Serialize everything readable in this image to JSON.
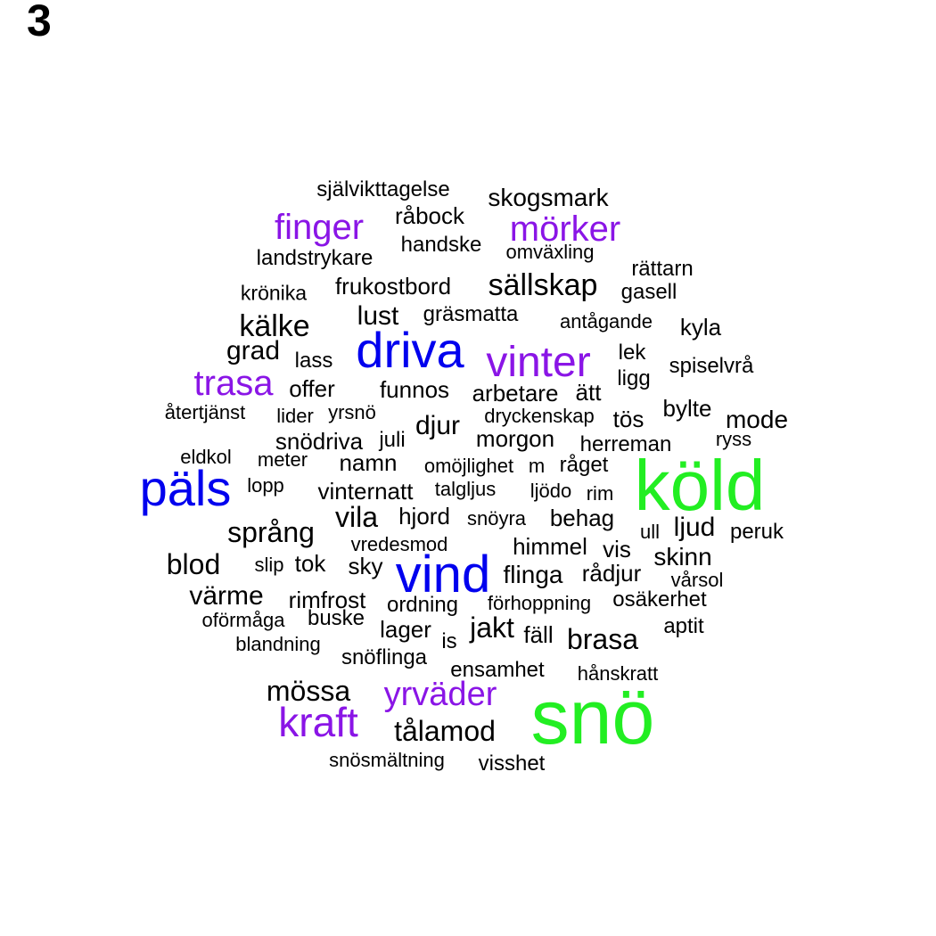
{
  "panel_label": "3",
  "colors": {
    "green": "#22ee22",
    "blue": "#0000ee",
    "purple": "#8a15e6",
    "black": "#000000"
  },
  "words": [
    {
      "text": "snö",
      "color": "green"
    },
    {
      "text": "köld",
      "color": "green"
    },
    {
      "text": "päls",
      "color": "blue"
    },
    {
      "text": "vind",
      "color": "blue"
    },
    {
      "text": "driva",
      "color": "blue"
    },
    {
      "text": "vinter",
      "color": "purple"
    },
    {
      "text": "finger",
      "color": "purple"
    },
    {
      "text": "mörker",
      "color": "purple"
    },
    {
      "text": "trasa",
      "color": "purple"
    },
    {
      "text": "kraft",
      "color": "purple"
    },
    {
      "text": "yrväder",
      "color": "purple"
    },
    {
      "text": "självikttagelse",
      "color": "black"
    },
    {
      "text": "skogsmark",
      "color": "black"
    },
    {
      "text": "råbock",
      "color": "black"
    },
    {
      "text": "handske",
      "color": "black"
    },
    {
      "text": "omväxling",
      "color": "black"
    },
    {
      "text": "landstrykare",
      "color": "black"
    },
    {
      "text": "rättarn",
      "color": "black"
    },
    {
      "text": "krönika",
      "color": "black"
    },
    {
      "text": "frukostbord",
      "color": "black"
    },
    {
      "text": "sällskap",
      "color": "black"
    },
    {
      "text": "gasell",
      "color": "black"
    },
    {
      "text": "kälke",
      "color": "black"
    },
    {
      "text": "lust",
      "color": "black"
    },
    {
      "text": "gräsmatta",
      "color": "black"
    },
    {
      "text": "antågande",
      "color": "black"
    },
    {
      "text": "kyla",
      "color": "black"
    },
    {
      "text": "grad",
      "color": "black"
    },
    {
      "text": "lass",
      "color": "black"
    },
    {
      "text": "lek",
      "color": "black"
    },
    {
      "text": "spiselvrå",
      "color": "black"
    },
    {
      "text": "ligg",
      "color": "black"
    },
    {
      "text": "offer",
      "color": "black"
    },
    {
      "text": "funnos",
      "color": "black"
    },
    {
      "text": "arbetare",
      "color": "black"
    },
    {
      "text": "ätt",
      "color": "black"
    },
    {
      "text": "återtjänst",
      "color": "black"
    },
    {
      "text": "lider",
      "color": "black"
    },
    {
      "text": "yrsnö",
      "color": "black"
    },
    {
      "text": "dryckenskap",
      "color": "black"
    },
    {
      "text": "tös",
      "color": "black"
    },
    {
      "text": "bylte",
      "color": "black"
    },
    {
      "text": "mode",
      "color": "black"
    },
    {
      "text": "djur",
      "color": "black"
    },
    {
      "text": "snödriva",
      "color": "black"
    },
    {
      "text": "juli",
      "color": "black"
    },
    {
      "text": "morgon",
      "color": "black"
    },
    {
      "text": "herreman",
      "color": "black"
    },
    {
      "text": "ryss",
      "color": "black"
    },
    {
      "text": "eldkol",
      "color": "black"
    },
    {
      "text": "meter",
      "color": "black"
    },
    {
      "text": "namn",
      "color": "black"
    },
    {
      "text": "omöjlighet",
      "color": "black"
    },
    {
      "text": "m",
      "color": "black"
    },
    {
      "text": "råget",
      "color": "black"
    },
    {
      "text": "lopp",
      "color": "black"
    },
    {
      "text": "vinternatt",
      "color": "black"
    },
    {
      "text": "talgljus",
      "color": "black"
    },
    {
      "text": "ljödo",
      "color": "black"
    },
    {
      "text": "rim",
      "color": "black"
    },
    {
      "text": "vila",
      "color": "black"
    },
    {
      "text": "hjord",
      "color": "black"
    },
    {
      "text": "snöyra",
      "color": "black"
    },
    {
      "text": "behag",
      "color": "black"
    },
    {
      "text": "ljud",
      "color": "black"
    },
    {
      "text": "språng",
      "color": "black"
    },
    {
      "text": "ull",
      "color": "black"
    },
    {
      "text": "peruk",
      "color": "black"
    },
    {
      "text": "vredesmod",
      "color": "black"
    },
    {
      "text": "himmel",
      "color": "black"
    },
    {
      "text": "vis",
      "color": "black"
    },
    {
      "text": "skinn",
      "color": "black"
    },
    {
      "text": "blod",
      "color": "black"
    },
    {
      "text": "slip",
      "color": "black"
    },
    {
      "text": "tok",
      "color": "black"
    },
    {
      "text": "sky",
      "color": "black"
    },
    {
      "text": "flinga",
      "color": "black"
    },
    {
      "text": "rådjur",
      "color": "black"
    },
    {
      "text": "vårsol",
      "color": "black"
    },
    {
      "text": "värme",
      "color": "black"
    },
    {
      "text": "rimfrost",
      "color": "black"
    },
    {
      "text": "ordning",
      "color": "black"
    },
    {
      "text": "förhoppning",
      "color": "black"
    },
    {
      "text": "osäkerhet",
      "color": "black"
    },
    {
      "text": "oförmåga",
      "color": "black"
    },
    {
      "text": "buske",
      "color": "black"
    },
    {
      "text": "lager",
      "color": "black"
    },
    {
      "text": "jakt",
      "color": "black"
    },
    {
      "text": "fäll",
      "color": "black"
    },
    {
      "text": "aptit",
      "color": "black"
    },
    {
      "text": "blandning",
      "color": "black"
    },
    {
      "text": "is",
      "color": "black"
    },
    {
      "text": "brasa",
      "color": "black"
    },
    {
      "text": "snöflinga",
      "color": "black"
    },
    {
      "text": "ensamhet",
      "color": "black"
    },
    {
      "text": "hånskratt",
      "color": "black"
    },
    {
      "text": "mössa",
      "color": "black"
    },
    {
      "text": "tålamod",
      "color": "black"
    },
    {
      "text": "snösmältning",
      "color": "black"
    },
    {
      "text": "visshet",
      "color": "black"
    }
  ]
}
